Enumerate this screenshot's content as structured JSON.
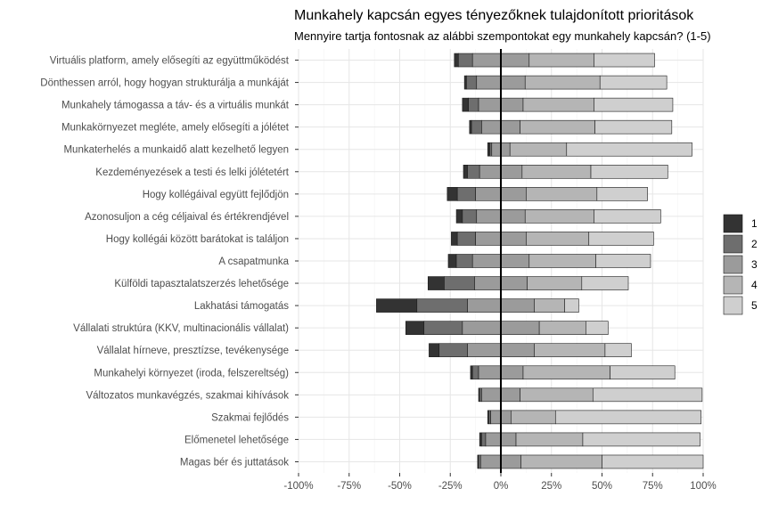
{
  "chart_data": {
    "type": "bar",
    "orientation": "horizontal",
    "stacked": "diverging",
    "title": "Munkahely kapcsán egyes tényezőknek tulajdonított prioritások",
    "subtitle": "Mennyire tartja fontosnak az alábbi szempontokat egy munkahely kapcsán? (1-5)",
    "xlabel": "",
    "ylabel": "",
    "xlim": [
      -100,
      100
    ],
    "x_ticks": [
      -100,
      -75,
      -50,
      -25,
      0,
      25,
      50,
      75,
      100
    ],
    "x_tick_labels": [
      "-100%",
      "-75%",
      "-50%",
      "-25%",
      "0%",
      "25%",
      "50%",
      "75%",
      "100%"
    ],
    "grid": true,
    "legend_position": "right",
    "legend": [
      "1",
      "2",
      "3",
      "4",
      "5"
    ],
    "colors": [
      "#333333",
      "#6e6e6e",
      "#9b9b9b",
      "#b5b5b5",
      "#cfcfcf"
    ],
    "categories": [
      "Virtuális platform, amely elősegíti az együttműködést",
      "Dönthessen arról, hogy hogyan strukturálja a munkáját",
      "Munkahely támogassa a táv- és a virtuális munkát",
      "Munkakörnyezet megléte, amely elősegíti a jólétet",
      "Munkaterhelés a munkaidő alatt kezelhető legyen",
      "Kezdeményezések a testi és lelki jólétetért",
      "Hogy kollégáival együtt fejlődjön",
      "Azonosuljon a cég céljaival és értékrendjével",
      "Hogy kollégái között barátokat is találjon",
      "A csapatmunka",
      "Külföldi tapasztalatszerzés lehetősége",
      "Lakhatási támogatás",
      "Vállalati struktúra (KKV, multinacionális vállalat)",
      "Vállalat hírneve, presztízse, tevékenysége",
      "Munkahelyi környezet (iroda, felszereltség)",
      "Változatos munkavégzés, szakmai kihívások",
      "Szakmai fejlődés",
      "Előmenetel lehetősége",
      "Magas bér és juttatások"
    ],
    "series": [
      {
        "name": "1",
        "values": [
          2,
          1,
          3,
          1,
          1,
          2,
          5,
          3,
          3,
          4,
          8,
          20,
          9,
          5,
          1,
          0.5,
          0.5,
          1,
          0.5
        ]
      },
      {
        "name": "2",
        "values": [
          7,
          5,
          5,
          5,
          1,
          6,
          9,
          7,
          9,
          8,
          15,
          25,
          19,
          14,
          3,
          1,
          1,
          2,
          1
        ]
      },
      {
        "name": "3",
        "values": [
          28,
          24,
          22,
          19,
          9,
          21,
          25,
          24,
          25,
          28,
          26,
          33,
          38,
          33,
          22,
          19,
          10,
          15,
          20
        ]
      },
      {
        "name": "4",
        "values": [
          32,
          37,
          35,
          37,
          28,
          34,
          35,
          34,
          31,
          33,
          27,
          15,
          23,
          35,
          43,
          36,
          22,
          33,
          40
        ]
      },
      {
        "name": "5",
        "values": [
          30,
          33,
          39,
          38,
          62,
          38,
          25,
          33,
          32,
          27,
          23,
          7,
          11,
          13,
          32,
          54,
          72,
          58,
          50
        ]
      }
    ]
  }
}
